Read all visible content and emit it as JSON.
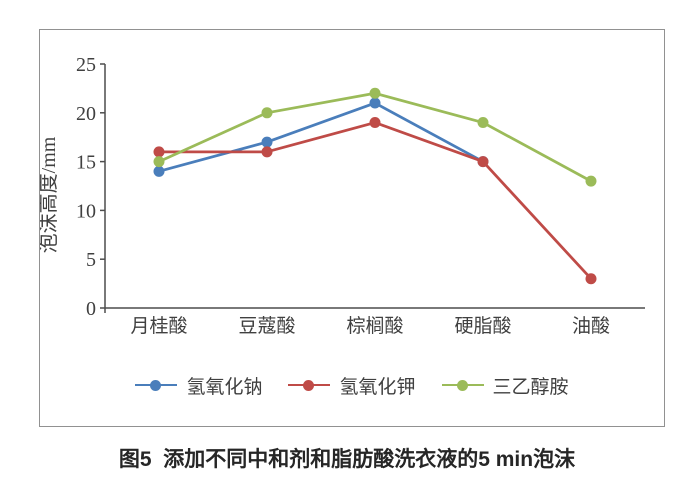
{
  "figure": {
    "caption": "图5  添加不同中和剂和脂肪酸洗衣液的5 min泡沫"
  },
  "chart_data": {
    "type": "line",
    "title": "",
    "xlabel": "",
    "ylabel": "泡沫高度/mm",
    "categories": [
      "月桂酸",
      "豆蔻酸",
      "棕榈酸",
      "硬脂酸",
      "油酸"
    ],
    "series": [
      {
        "name": "氢氧化钠",
        "color": "#4A7EBB",
        "values": [
          14,
          17,
          21,
          15,
          null
        ]
      },
      {
        "name": "氢氧化钾",
        "color": "#BF4B47",
        "values": [
          16,
          16,
          19,
          15,
          3
        ]
      },
      {
        "name": "三乙醇胺",
        "color": "#9BBB59",
        "values": [
          15,
          20,
          22,
          19,
          13
        ]
      }
    ],
    "ylim": [
      0,
      25
    ],
    "yticks": [
      0,
      5,
      10,
      15,
      20,
      25
    ],
    "grid": false,
    "legend_position": "bottom",
    "marker": "circle",
    "axis_color": "#4d4d4d",
    "text_color": "#404040"
  }
}
